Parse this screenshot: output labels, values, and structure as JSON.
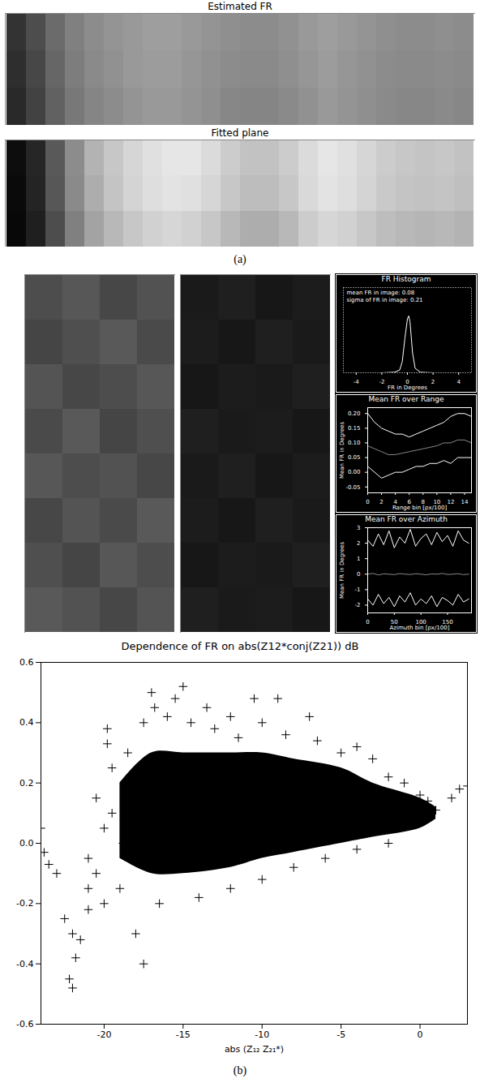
{
  "captions": [
    "(a)",
    "(b)"
  ],
  "chart_data": [
    {
      "type": "heatmap",
      "title": "Estimated FR",
      "tick_labels": false,
      "clim": [
        0,
        1
      ],
      "cells": [
        [
          0.2,
          0.3,
          0.42,
          0.5,
          0.55,
          0.58,
          0.6,
          0.62,
          0.62,
          0.6,
          0.58,
          0.56,
          0.55,
          0.55,
          0.57,
          0.6,
          0.62,
          0.6,
          0.58,
          0.56,
          0.55,
          0.55,
          0.56,
          0.55
        ],
        [
          0.18,
          0.28,
          0.4,
          0.49,
          0.54,
          0.57,
          0.6,
          0.61,
          0.61,
          0.59,
          0.57,
          0.55,
          0.54,
          0.54,
          0.56,
          0.59,
          0.61,
          0.59,
          0.57,
          0.55,
          0.54,
          0.54,
          0.55,
          0.54
        ],
        [
          0.16,
          0.26,
          0.38,
          0.47,
          0.52,
          0.55,
          0.58,
          0.6,
          0.6,
          0.58,
          0.56,
          0.53,
          0.52,
          0.52,
          0.54,
          0.57,
          0.6,
          0.58,
          0.56,
          0.54,
          0.53,
          0.53,
          0.54,
          0.53
        ]
      ]
    },
    {
      "type": "heatmap",
      "title": "Fitted plane",
      "tick_labels": false,
      "clim": [
        0,
        1
      ],
      "cells": [
        [
          0.05,
          0.15,
          0.35,
          0.55,
          0.7,
          0.78,
          0.84,
          0.88,
          0.9,
          0.9,
          0.86,
          0.8,
          0.76,
          0.76,
          0.8,
          0.86,
          0.9,
          0.88,
          0.84,
          0.8,
          0.78,
          0.77,
          0.78,
          0.76
        ],
        [
          0.04,
          0.14,
          0.34,
          0.54,
          0.68,
          0.77,
          0.83,
          0.87,
          0.89,
          0.88,
          0.84,
          0.78,
          0.74,
          0.74,
          0.78,
          0.85,
          0.89,
          0.87,
          0.83,
          0.79,
          0.77,
          0.76,
          0.77,
          0.75
        ],
        [
          0.03,
          0.12,
          0.3,
          0.5,
          0.64,
          0.72,
          0.78,
          0.82,
          0.84,
          0.82,
          0.78,
          0.72,
          0.68,
          0.68,
          0.72,
          0.8,
          0.84,
          0.82,
          0.78,
          0.74,
          0.72,
          0.71,
          0.72,
          0.7
        ]
      ]
    },
    {
      "type": "heatmap",
      "tick_labels": false,
      "clim": [
        0,
        1
      ],
      "cells": [
        [
          0.3,
          0.34,
          0.28,
          0.32
        ],
        [
          0.27,
          0.31,
          0.35,
          0.29
        ],
        [
          0.33,
          0.28,
          0.3,
          0.34
        ],
        [
          0.29,
          0.35,
          0.27,
          0.31
        ],
        [
          0.34,
          0.3,
          0.32,
          0.28
        ],
        [
          0.28,
          0.33,
          0.29,
          0.35
        ],
        [
          0.31,
          0.27,
          0.34,
          0.3
        ],
        [
          0.35,
          0.32,
          0.28,
          0.33
        ]
      ]
    },
    {
      "type": "heatmap",
      "tick_labels": false,
      "clim": [
        0,
        1
      ],
      "cells": [
        [
          0.1,
          0.12,
          0.09,
          0.11
        ],
        [
          0.11,
          0.09,
          0.12,
          0.1
        ],
        [
          0.09,
          0.11,
          0.1,
          0.12
        ],
        [
          0.12,
          0.1,
          0.11,
          0.09
        ],
        [
          0.1,
          0.12,
          0.09,
          0.11
        ],
        [
          0.11,
          0.09,
          0.12,
          0.1
        ],
        [
          0.09,
          0.11,
          0.1,
          0.12
        ],
        [
          0.12,
          0.1,
          0.11,
          0.09
        ]
      ]
    },
    {
      "type": "line",
      "title": "FR Histogram",
      "x_label": "FR in Degrees",
      "tick_labels": "x",
      "annotations": [
        "mean FR in image: 0.08",
        "sigma of FR in image: 0.21"
      ],
      "xlim": [
        -5,
        5
      ],
      "xticks": [
        -4,
        -2,
        0,
        2,
        4
      ],
      "ylim": [
        0,
        1.5
      ],
      "x": [
        -5,
        -4,
        -3,
        -2,
        -1,
        -0.6,
        -0.4,
        -0.2,
        0,
        0.1,
        0.2,
        0.4,
        0.6,
        1,
        2,
        3,
        4,
        5
      ],
      "series": [
        {
          "color": "#ffffff",
          "values": [
            0,
            0,
            0,
            0,
            0.01,
            0.05,
            0.2,
            0.6,
            0.95,
            1,
            0.9,
            0.35,
            0.08,
            0.01,
            0,
            0,
            0,
            0
          ]
        }
      ]
    },
    {
      "type": "line",
      "title": "Mean FR over Range",
      "x_label": "Range bin [px/100]",
      "y_label": "Mean FR in Degrees",
      "xlim": [
        0,
        15
      ],
      "xticks": [
        0,
        2,
        4,
        6,
        8,
        10,
        12,
        14
      ],
      "ylim": [
        -0.07,
        0.22
      ],
      "yticks": [
        {
          "value": -0.05,
          "label": "-0.05"
        },
        {
          "value": 0,
          "label": "0.00"
        },
        {
          "value": 0.05,
          "label": "0.05"
        },
        {
          "value": 0.1,
          "label": "0.10"
        },
        {
          "value": 0.15,
          "label": "0.15"
        },
        {
          "value": 0.2,
          "label": "0.20"
        }
      ],
      "x": [
        0,
        1,
        2,
        3,
        4,
        5,
        6,
        7,
        8,
        9,
        10,
        11,
        12,
        13,
        14,
        15
      ],
      "series": [
        {
          "color": "#ffffff",
          "values": [
            0.2,
            0.17,
            0.15,
            0.14,
            0.13,
            0.13,
            0.12,
            0.13,
            0.14,
            0.15,
            0.16,
            0.17,
            0.19,
            0.2,
            0.2,
            0.19
          ]
        },
        {
          "color": "#888888",
          "values": [
            0.09,
            0.08,
            0.07,
            0.06,
            0.06,
            0.065,
            0.07,
            0.075,
            0.08,
            0.085,
            0.09,
            0.1,
            0.1,
            0.11,
            0.11,
            0.1
          ]
        },
        {
          "color": "#ffffff",
          "values": [
            0.02,
            0,
            -0.02,
            -0.01,
            0,
            0,
            0.01,
            0.02,
            0.02,
            0.03,
            0.03,
            0.04,
            0.03,
            0.05,
            0.05,
            0.05
          ]
        }
      ]
    },
    {
      "type": "line",
      "title": "Mean FR over Azimuth",
      "x_label": "Azimuth bin [px/100]",
      "y_label": "Mean FR in Degrees",
      "xlim": [
        0,
        195
      ],
      "xticks": [
        0,
        50,
        100,
        150
      ],
      "ylim": [
        -2.5,
        3
      ],
      "yticks": [
        -2,
        -1,
        0,
        1,
        2,
        3
      ],
      "x": [
        0,
        10,
        20,
        30,
        40,
        50,
        60,
        70,
        80,
        90,
        100,
        110,
        120,
        130,
        140,
        150,
        160,
        170,
        180,
        190
      ],
      "series": [
        {
          "color": "#ffffff",
          "values": [
            2.2,
            1.8,
            2.6,
            1.9,
            2.8,
            1.7,
            2.4,
            2.0,
            2.9,
            1.8,
            2.3,
            2.6,
            1.9,
            2.7,
            2.1,
            2.5,
            1.8,
            2.8,
            2.2,
            2.0
          ]
        },
        {
          "color": "#888888",
          "values": [
            0,
            0.05,
            -0.05,
            0.02,
            0,
            -0.03,
            0.04,
            0,
            -0.02,
            0.03,
            0,
            -0.04,
            0.02,
            0,
            0.05,
            -0.02,
            0,
            0.03,
            -0.03,
            0
          ]
        },
        {
          "color": "#ffffff",
          "values": [
            -1.6,
            -2.0,
            -1.3,
            -1.9,
            -1.5,
            -2.1,
            -1.4,
            -1.8,
            -1.2,
            -2.0,
            -1.6,
            -1.9,
            -1.4,
            -2.1,
            -1.5,
            -1.7,
            -2.0,
            -1.3,
            -1.8,
            -1.6
          ]
        }
      ]
    },
    {
      "type": "scatter",
      "title": "Dependence of FR on abs(Z12*conj(Z21)) dB",
      "x_label": "abs (Z₁₂ Z₂₁*)",
      "xlim": [
        -24,
        3
      ],
      "xticks": [
        -20,
        -15,
        -10,
        -5,
        0
      ],
      "ylim": [
        -0.6,
        0.6
      ],
      "yticks": [
        -0.6,
        -0.4,
        -0.2,
        {
          "value": 0,
          "label": "0.0"
        },
        0.2,
        0.4,
        0.6
      ],
      "series": [
        {
          "type": "area",
          "color": "#000000",
          "x": [
            -19,
            -17,
            -15,
            -12,
            -10,
            -8,
            -5,
            -3,
            0,
            1
          ],
          "upper": [
            0.2,
            0.3,
            0.3,
            0.3,
            0.3,
            0.28,
            0.25,
            0.2,
            0.15,
            0.12
          ],
          "lower": [
            -0.05,
            -0.1,
            -0.1,
            -0.08,
            -0.05,
            -0.03,
            0,
            0.02,
            0.05,
            0.08
          ]
        },
        {
          "type": "scatter",
          "marker": "plus",
          "color": "#000000",
          "x": [
            -24,
            -23.8,
            -23.5,
            -23,
            -22.5,
            -22,
            -22.2,
            -22,
            -21.8,
            -21.5,
            -21,
            -21,
            -20.5,
            -20,
            -20,
            -19.8,
            -19.8,
            -19.5,
            -19,
            -18.5,
            -18,
            -17.5,
            -17.5,
            -17,
            -16.8,
            -16.5,
            -16,
            -15.5,
            -15,
            -14.5,
            -14,
            -13.5,
            -13,
            -12,
            -11.5,
            -10.5,
            -10,
            -9,
            -8.5,
            -7,
            -6.5,
            -5,
            -4,
            -3,
            -2,
            -1,
            0,
            0.5,
            1,
            2,
            2.5,
            3,
            -12,
            -10,
            -8,
            -6,
            -4,
            -2,
            -19.5,
            -18.8,
            -20.5,
            -21
          ],
          "values": [
            0.05,
            -0.03,
            -0.07,
            -0.1,
            -0.25,
            -0.3,
            -0.45,
            -0.48,
            -0.38,
            -0.32,
            -0.22,
            -0.15,
            -0.1,
            -0.2,
            0.05,
            0.38,
            0.33,
            0.25,
            -0.15,
            0.3,
            -0.3,
            -0.4,
            0.4,
            0.5,
            0.45,
            -0.2,
            0.42,
            0.48,
            0.52,
            0.4,
            -0.18,
            0.45,
            0.38,
            0.42,
            0.35,
            0.48,
            0.4,
            0.48,
            0.36,
            0.42,
            0.34,
            0.3,
            0.32,
            0.28,
            0.22,
            0.2,
            0.16,
            0.14,
            0.11,
            0.15,
            0.18,
            0.19,
            -0.15,
            -0.12,
            -0.08,
            -0.05,
            -0.02,
            0,
            0.1,
            0,
            0.15,
            -0.05
          ]
        }
      ]
    }
  ]
}
